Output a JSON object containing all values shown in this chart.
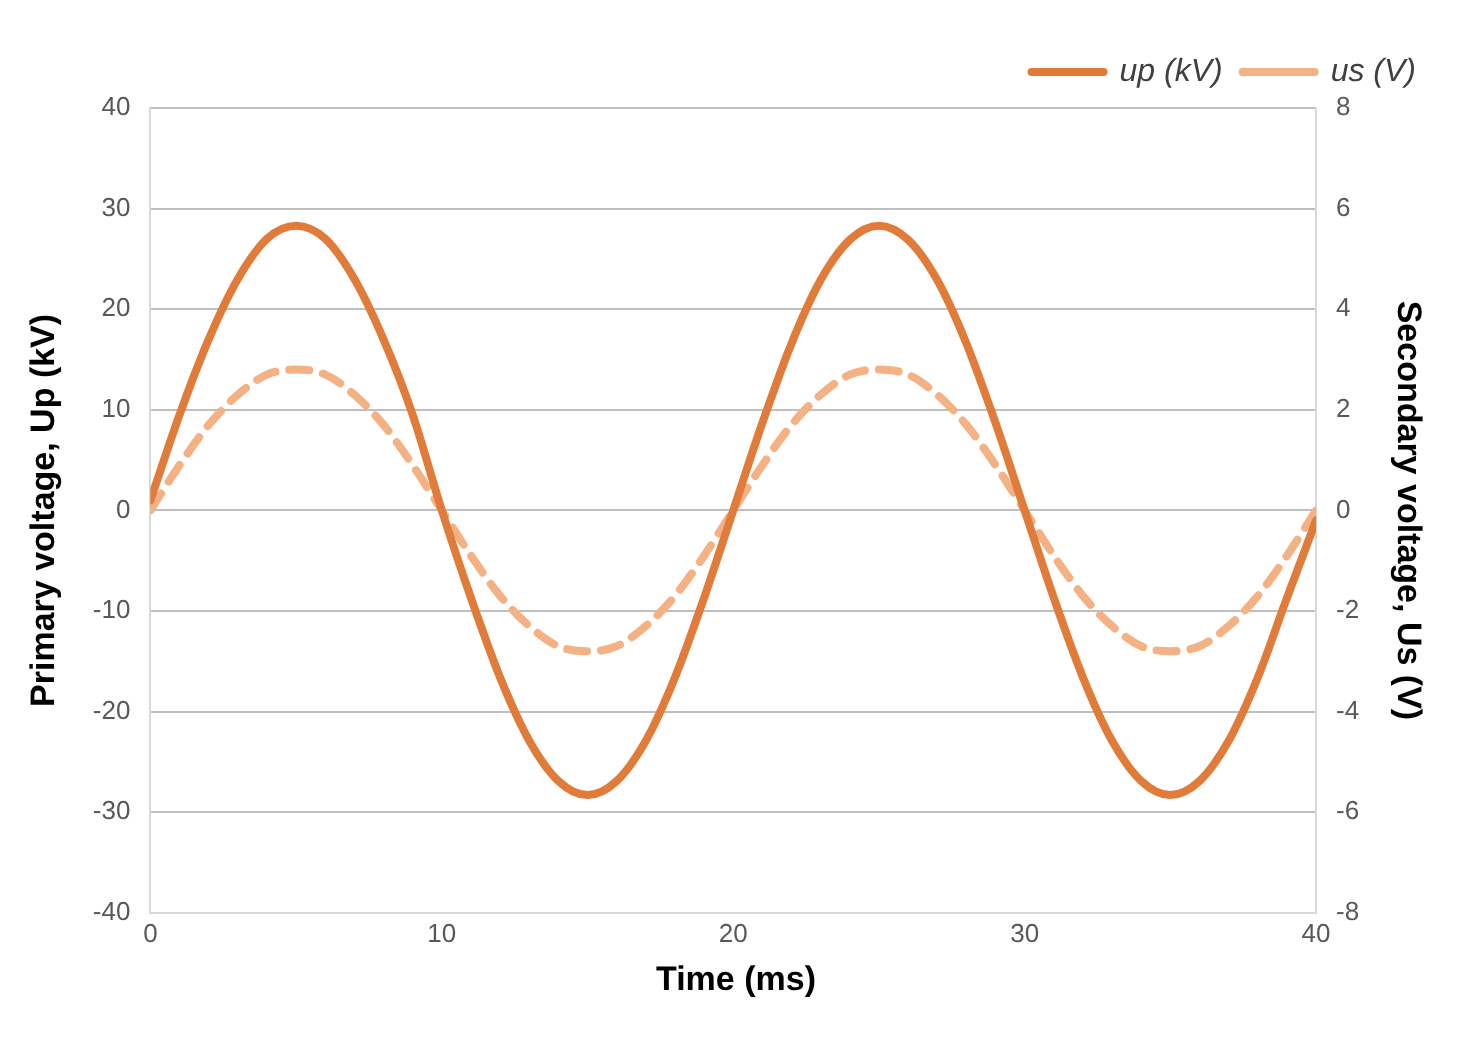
{
  "chart_data": {
    "type": "line",
    "xlabel": "Time (ms)",
    "ylabel": "Primary voltage, Up (kV)",
    "y2label": "Secondary voltage, Us (V)",
    "x": [
      0,
      1,
      2,
      3,
      4,
      5,
      6,
      7,
      8,
      9,
      10,
      11,
      12,
      13,
      14,
      15,
      16,
      17,
      18,
      19,
      20,
      21,
      22,
      23,
      24,
      25,
      26,
      27,
      28,
      29,
      30,
      31,
      32,
      33,
      34,
      35,
      36,
      37,
      38,
      39,
      40
    ],
    "series": [
      {
        "name": "up (kV)",
        "color": "#e07b39",
        "line_style": "solid",
        "values": [
          1,
          9.5,
          17,
          23,
          27,
          28.3,
          27,
          23,
          17,
          9.5,
          0,
          -8.7,
          -16.6,
          -22.9,
          -26.9,
          -28.3,
          -26.9,
          -22.9,
          -16.6,
          -8.7,
          0,
          8.7,
          16.6,
          22.9,
          26.9,
          28.3,
          26.9,
          22.9,
          16.6,
          8.7,
          0,
          -8.7,
          -16.6,
          -22.9,
          -26.9,
          -28.3,
          -26.9,
          -22.9,
          -16.6,
          -8.7,
          -1
        ]
      },
      {
        "name": "us (V)",
        "color": "#f4b183",
        "line_style": "dashed",
        "axis": "y2",
        "values": [
          0,
          0.9,
          1.7,
          2.3,
          2.7,
          2.8,
          2.7,
          2.3,
          1.7,
          0.9,
          0,
          -0.9,
          -1.7,
          -2.3,
          -2.7,
          -2.8,
          -2.7,
          -2.3,
          -1.7,
          -0.9,
          0,
          0.9,
          1.7,
          2.3,
          2.7,
          2.8,
          2.7,
          2.3,
          1.7,
          0.9,
          0,
          -0.9,
          -1.7,
          -2.3,
          -2.7,
          -2.8,
          -2.7,
          -2.3,
          -1.7,
          -0.9,
          0
        ]
      }
    ],
    "xlim": [
      0,
      40
    ],
    "xticks": [
      0,
      10,
      20,
      30,
      40
    ],
    "ylim": [
      -40,
      40
    ],
    "yticks": [
      -40,
      -30,
      -20,
      -10,
      0,
      10,
      20,
      30,
      40
    ],
    "y2lim": [
      -8,
      8
    ],
    "y2ticks": [
      -8,
      -6,
      -4,
      -2,
      0,
      2,
      4,
      6,
      8
    ],
    "grid": "y",
    "legend": "top right",
    "marker": "none"
  }
}
